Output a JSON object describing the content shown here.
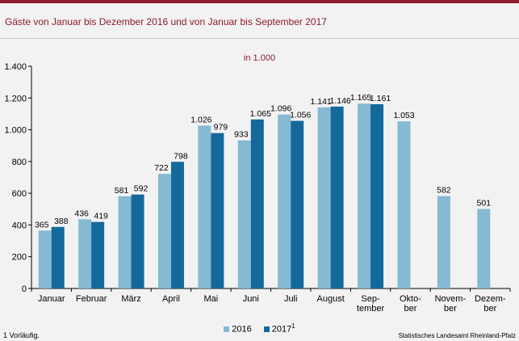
{
  "title": "Gäste von Januar bis Dezember 2016 und von Januar bis September 2017",
  "unit_label": "in 1.000",
  "colors": {
    "accent": "#8c1d2c",
    "series_2016": "#86b9d3",
    "series_2017": "#14699a"
  },
  "legend": {
    "items": [
      {
        "label": "2016",
        "sup": ""
      },
      {
        "label": "2017",
        "sup": "1"
      }
    ]
  },
  "footnote": "1 Vorläufig.",
  "source": "Statistisches Landesamt Rheinland-Pfalz",
  "chart_data": {
    "type": "bar",
    "categories": [
      [
        "Januar"
      ],
      [
        "Februar"
      ],
      [
        "März"
      ],
      [
        "April"
      ],
      [
        "Mai"
      ],
      [
        "Juni"
      ],
      [
        "Juli"
      ],
      [
        "August"
      ],
      [
        "Sep-",
        "tember"
      ],
      [
        "Okto-",
        "ber"
      ],
      [
        "Novem-",
        "ber"
      ],
      [
        "Dezem-",
        "ber"
      ]
    ],
    "series": [
      {
        "name": "2016",
        "values": [
          365,
          436,
          581,
          722,
          1026,
          933,
          1096,
          1141,
          1165,
          1053,
          582,
          501
        ],
        "labels": [
          "365",
          "436",
          "581",
          "722",
          "1.026",
          "933",
          "1.096",
          "1.141",
          "1.165",
          "1.053",
          "582",
          "501"
        ]
      },
      {
        "name": "2017",
        "values": [
          388,
          419,
          592,
          798,
          979,
          1065,
          1056,
          1146,
          1161,
          null,
          null,
          null
        ],
        "labels": [
          "388",
          "419",
          "592",
          "798",
          "979",
          "1.065",
          "1.056",
          "1.146",
          "1.161",
          "",
          "",
          ""
        ]
      }
    ],
    "ylim": [
      0,
      1400
    ],
    "yticks": [
      0,
      200,
      400,
      600,
      800,
      1000,
      1200,
      1400
    ],
    "ytick_labels": [
      "0",
      "200",
      "400",
      "600",
      "800",
      "1.000",
      "1.200",
      "1.400"
    ],
    "grid": false
  }
}
